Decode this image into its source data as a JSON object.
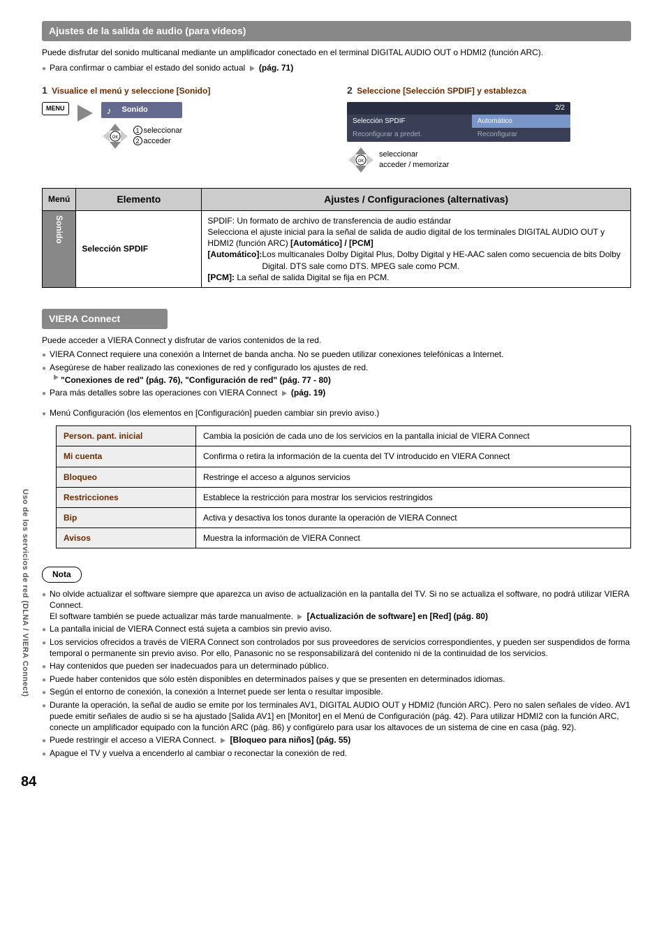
{
  "sideTab": "Uso de los servicios de red (DLNA / VIERA Connect)",
  "section1": {
    "title": "Ajustes de la salida de audio (para vídeos)",
    "intro": "Puede disfrutar del sonido multicanal mediante un amplificador conectado en el terminal DIGITAL AUDIO OUT o HDMI2 (función ARC).",
    "bullet1_pre": "Para confirmar o cambiar el estado del sonido actual ",
    "bullet1_ref": "(pág. 71)",
    "step1": {
      "num": "1",
      "title": "Visualice el menú y seleccione [Sonido]",
      "menuBtn": "MENU",
      "panel": "Sonido",
      "nav1": "seleccionar",
      "nav2": "acceder",
      "c1": "1",
      "c2": "2"
    },
    "step2": {
      "num": "2",
      "title": "Seleccione [Selección SPDIF] y establezca",
      "page": "2/2",
      "row1l": "Selección SPDIF",
      "row1v": "Automático",
      "row2l": "Reconfigurar a predet.",
      "row2v": "Reconfigurar",
      "nav1": "seleccionar",
      "nav2": "acceder / memorizar"
    },
    "table": {
      "h1": "Menú",
      "h2": "Elemento",
      "h3": "Ajustes / Configuraciones (alternativas)",
      "vcell": "Sonido",
      "elem": "Selección SPDIF",
      "d1": "SPDIF: Un formato de archivo de transferencia de audio estándar",
      "d2": "Selecciona el ajuste inicial para la señal de salida de audio digital de los terminales DIGITAL AUDIO OUT y HDMI2 (función ARC) ",
      "d2b": "[Automático] / [PCM]",
      "d3a": "[Automático]:",
      "d3b": " Los multicanales Dolby Digital Plus, Dolby Digital y HE-AAC salen como secuencia de bits Dolby Digital. DTS sale como DTS. MPEG sale como PCM.",
      "d4a": "[PCM]:",
      "d4b": " La señal de salida Digital se fija en PCM."
    }
  },
  "section2": {
    "title": "VIERA Connect",
    "intro": "Puede acceder a VIERA Connect y disfrutar de varios contenidos de la red.",
    "b1": "VIERA Connect requiere una conexión a Internet de banda ancha. No se pueden utilizar conexiones telefónicas a Internet.",
    "b2": "Asegúrese de haber realizado las conexiones de red y configurado los ajustes de red.",
    "b2ref": "\"Conexiones de red\" (pág. 76), \"Configuración de red\" (pág. 77 - 80)",
    "b3pre": "Para más detalles sobre las operaciones con VIERA Connect ",
    "b3ref": "(pág. 19)",
    "b4": "Menú Configuración (los elementos en [Configuración] pueden cambiar sin previo aviso.)",
    "cfg": [
      {
        "n": "Person. pant. inicial",
        "d": "Cambia la posición de cada uno de los servicios en la pantalla inicial de VIERA Connect"
      },
      {
        "n": "Mi cuenta",
        "d": "Confirma o retira la información de la cuenta del TV introducido en VIERA Connect"
      },
      {
        "n": "Bloqueo",
        "d": "Restringe el acceso a algunos servicios"
      },
      {
        "n": "Restricciones",
        "d": "Establece la restricción para mostrar los servicios restringidos"
      },
      {
        "n": "Bip",
        "d": "Activa y desactiva los tonos durante la operación de VIERA Connect"
      },
      {
        "n": "Avisos",
        "d": "Muestra la información de VIERA Connect"
      }
    ],
    "nota": "Nota",
    "notes": {
      "n1a": "No olvide actualizar el software siempre que aparezca un aviso de actualización en la pantalla del TV. Si no se actualiza el software, no podrá utilizar VIERA Connect.",
      "n1b_pre": "El software también se puede actualizar más tarde manualmente. ",
      "n1b_ref": "[Actualización de software] en [Red] (pág. 80)",
      "n2": "La pantalla inicial de VIERA Connect está sujeta a cambios sin previo aviso.",
      "n3": "Los servicios ofrecidos a través de VIERA Connect son controlados por sus proveedores de servicios correspondientes, y pueden ser suspendidos de forma temporal o permanente sin previo aviso. Por ello, Panasonic no se responsabilizará del contenido ni de la continuidad de los servicios.",
      "n4": "Hay contenidos que pueden ser inadecuados para un determinado público.",
      "n5": "Puede haber contenidos que sólo estén disponibles en determinados países y que se presenten en determinados idiomas.",
      "n6": "Según el entorno de conexión, la conexión a Internet puede ser lenta o resultar imposible.",
      "n7": "Durante la operación, la señal de audio se emite por los terminales AV1, DIGITAL AUDIO OUT y HDMI2 (función ARC). Pero no salen señales de vídeo. AV1 puede emitir señales de audio si se ha ajustado [Salida AV1] en [Monitor] en el Menú de Configuración (pág. 42). Para utilizar HDMI2 con la función ARC, conecte un amplificador equipado con la función ARC (pág. 86) y configúrelo para usar los altavoces de un sistema de cine en casa (pág. 92).",
      "n8pre": "Puede restringir el acceso a VIERA Connect. ",
      "n8ref": "[Bloqueo para niños] (pág. 55)",
      "n9": "Apague el TV y vuelva a encenderlo al cambiar o reconectar la conexión de red."
    }
  },
  "pageNum": "84"
}
